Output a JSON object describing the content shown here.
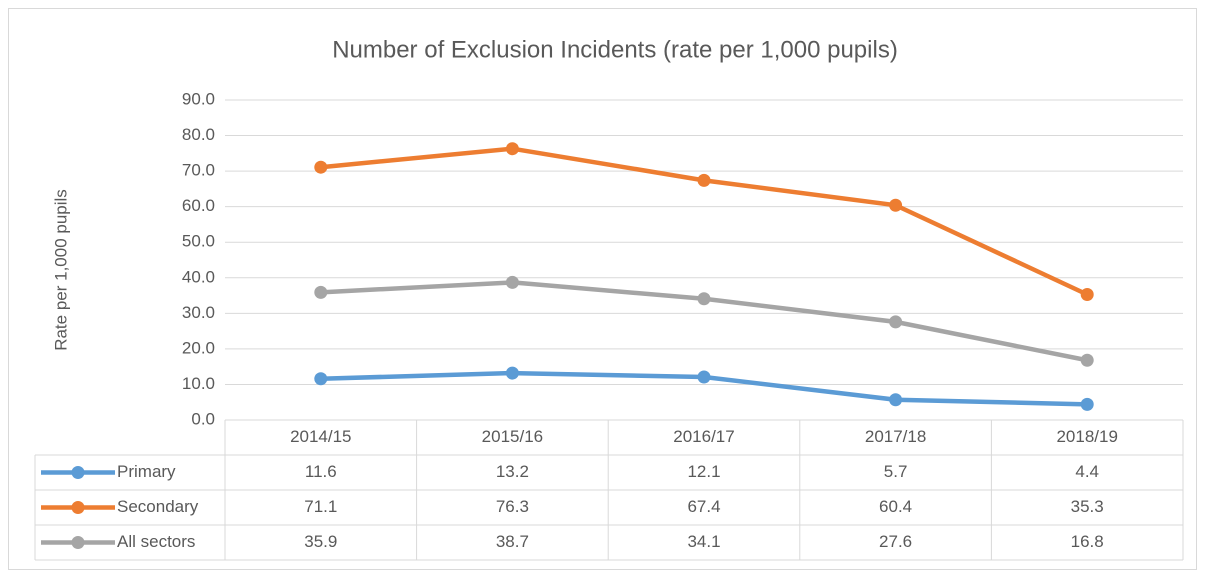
{
  "chart_data": {
    "type": "line",
    "title": "Number of Exclusion Incidents (rate per 1,000 pupils)",
    "y_label": "Rate per 1,000 pupils",
    "categories": [
      "2014/15",
      "2015/16",
      "2016/17",
      "2017/18",
      "2018/19"
    ],
    "series": [
      {
        "name": "Primary",
        "color": "#5b9bd5",
        "values": [
          11.6,
          13.2,
          12.1,
          5.7,
          4.4
        ]
      },
      {
        "name": "Secondary",
        "color": "#ed7d31",
        "values": [
          71.1,
          76.3,
          67.4,
          60.4,
          35.3
        ]
      },
      {
        "name": "All sectors",
        "color": "#a5a5a5",
        "values": [
          35.9,
          38.7,
          34.1,
          27.6,
          16.8
        ]
      }
    ],
    "ylim": [
      0,
      90
    ],
    "yticks": [
      {
        "value": 0,
        "label": "0.0"
      },
      {
        "value": 10,
        "label": "10.0"
      },
      {
        "value": 20,
        "label": "20.0"
      },
      {
        "value": 30,
        "label": "30.0"
      },
      {
        "value": 40,
        "label": "40.0"
      },
      {
        "value": 50,
        "label": "50.0"
      },
      {
        "value": 60,
        "label": "60.0"
      },
      {
        "value": 70,
        "label": "70.0"
      },
      {
        "value": 80,
        "label": "80.0"
      },
      {
        "value": 90,
        "label": "90.0"
      }
    ],
    "grid": true,
    "data_table": true
  }
}
